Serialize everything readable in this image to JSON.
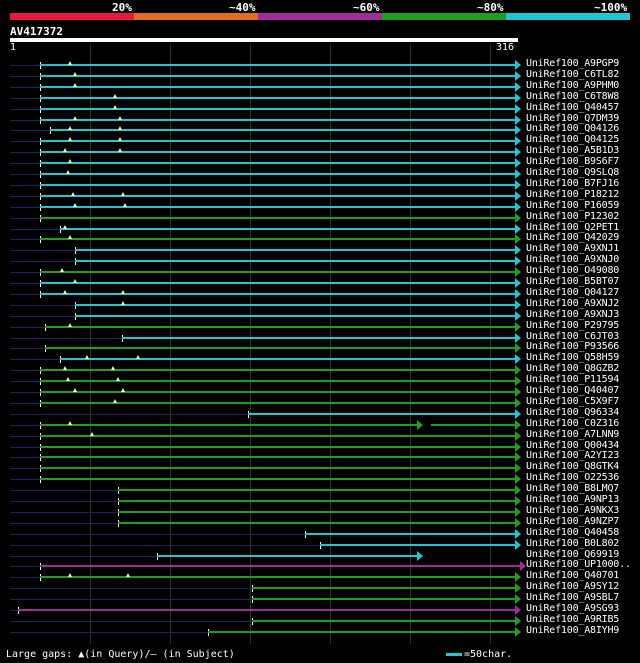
{
  "scale": {
    "labels": [
      "20%",
      "~40%",
      "~60%",
      "~80%",
      "~100%"
    ],
    "colors": [
      "#e8183c",
      "#e06c1c",
      "#a02c9c",
      "#1fa01c",
      "#1ec8d2"
    ]
  },
  "query": {
    "title": "AV417372",
    "start": "1",
    "end": "316"
  },
  "colors": {
    "cyan": "#1ec8d2",
    "green": "#1fa01c",
    "magenta": "#a02c9c",
    "dark": "#1a2260"
  },
  "hits": [
    {
      "label": "UniRef100_A9PGP9",
      "color": "cyan"
    },
    {
      "label": "UniRef100_C6TL82",
      "color": "cyan"
    },
    {
      "label": "UniRef100_A9PHM0",
      "color": "cyan"
    },
    {
      "label": "UniRef100_C6T8W8",
      "color": "cyan"
    },
    {
      "label": "UniRef100_Q40457",
      "color": "cyan"
    },
    {
      "label": "UniRef100_Q7DM39",
      "color": "cyan"
    },
    {
      "label": "UniRef100_Q04126",
      "color": "cyan"
    },
    {
      "label": "UniRef100_Q04125",
      "color": "cyan"
    },
    {
      "label": "UniRef100_A5B1D3",
      "color": "cyan"
    },
    {
      "label": "UniRef100_B9S6F7",
      "color": "cyan"
    },
    {
      "label": "UniRef100_Q9SLQ8",
      "color": "cyan"
    },
    {
      "label": "UniRef100_B7FJ16",
      "color": "cyan"
    },
    {
      "label": "UniRef100_P18212",
      "color": "cyan"
    },
    {
      "label": "UniRef100_P16059",
      "color": "cyan"
    },
    {
      "label": "UniRef100_P12302",
      "color": "green"
    },
    {
      "label": "UniRef100_Q2PET1",
      "color": "cyan"
    },
    {
      "label": "UniRef100_Q42029",
      "color": "green"
    },
    {
      "label": "UniRef100_A9XNJ1",
      "color": "cyan"
    },
    {
      "label": "UniRef100_A9XNJ0",
      "color": "cyan"
    },
    {
      "label": "UniRef100_O49080",
      "color": "green"
    },
    {
      "label": "UniRef100_B5BT07",
      "color": "cyan"
    },
    {
      "label": "UniRef100_Q04127",
      "color": "cyan"
    },
    {
      "label": "UniRef100_A9XNJ2",
      "color": "cyan"
    },
    {
      "label": "UniRef100_A9XNJ3",
      "color": "cyan"
    },
    {
      "label": "UniRef100_P29795",
      "color": "green"
    },
    {
      "label": "UniRef100_C6JT03",
      "color": "cyan"
    },
    {
      "label": "UniRef100_P93566",
      "color": "green"
    },
    {
      "label": "UniRef100_Q58H59",
      "color": "cyan"
    },
    {
      "label": "UniRef100_Q8GZB2",
      "color": "green"
    },
    {
      "label": "UniRef100_P11594",
      "color": "green"
    },
    {
      "label": "UniRef100_Q40407",
      "color": "green"
    },
    {
      "label": "UniRef100_C5X9F7",
      "color": "green"
    },
    {
      "label": "UniRef100_Q96334",
      "color": "cyan"
    },
    {
      "label": "UniRef100_C0Z316",
      "color": "green"
    },
    {
      "label": "UniRef100_A7LNN9",
      "color": "green"
    },
    {
      "label": "UniRef100_Q00434",
      "color": "green"
    },
    {
      "label": "UniRef100_A2YI23",
      "color": "green"
    },
    {
      "label": "UniRef100_Q8GTK4",
      "color": "green"
    },
    {
      "label": "UniRef100_O22536",
      "color": "green"
    },
    {
      "label": "UniRef100_B8LMQ7",
      "color": "green"
    },
    {
      "label": "UniRef100_A9NP13",
      "color": "green"
    },
    {
      "label": "UniRef100_A9NKX3",
      "color": "green"
    },
    {
      "label": "UniRef100_A9NZP7",
      "color": "green"
    },
    {
      "label": "UniRef100_Q40458",
      "color": "cyan"
    },
    {
      "label": "UniRef100_B0L802",
      "color": "cyan"
    },
    {
      "label": "UniRef100_Q69919",
      "color": "cyan"
    },
    {
      "label": "UniRef100_UP1000..",
      "color": "magenta"
    },
    {
      "label": "UniRef100_Q40701",
      "color": "green"
    },
    {
      "label": "UniRef100_A9SY12",
      "color": "green"
    },
    {
      "label": "UniRef100_A9SBL7",
      "color": "green"
    },
    {
      "label": "UniRef100_A9SG93",
      "color": "magenta"
    },
    {
      "label": "UniRef100_A9RIB5",
      "color": "green"
    },
    {
      "label": "UniRef100_A8IYH9",
      "color": "green"
    }
  ],
  "legend": {
    "gaps_text": "Large gaps: ▲(in Query)/– (in Subject)",
    "scale_text": "=50char."
  }
}
